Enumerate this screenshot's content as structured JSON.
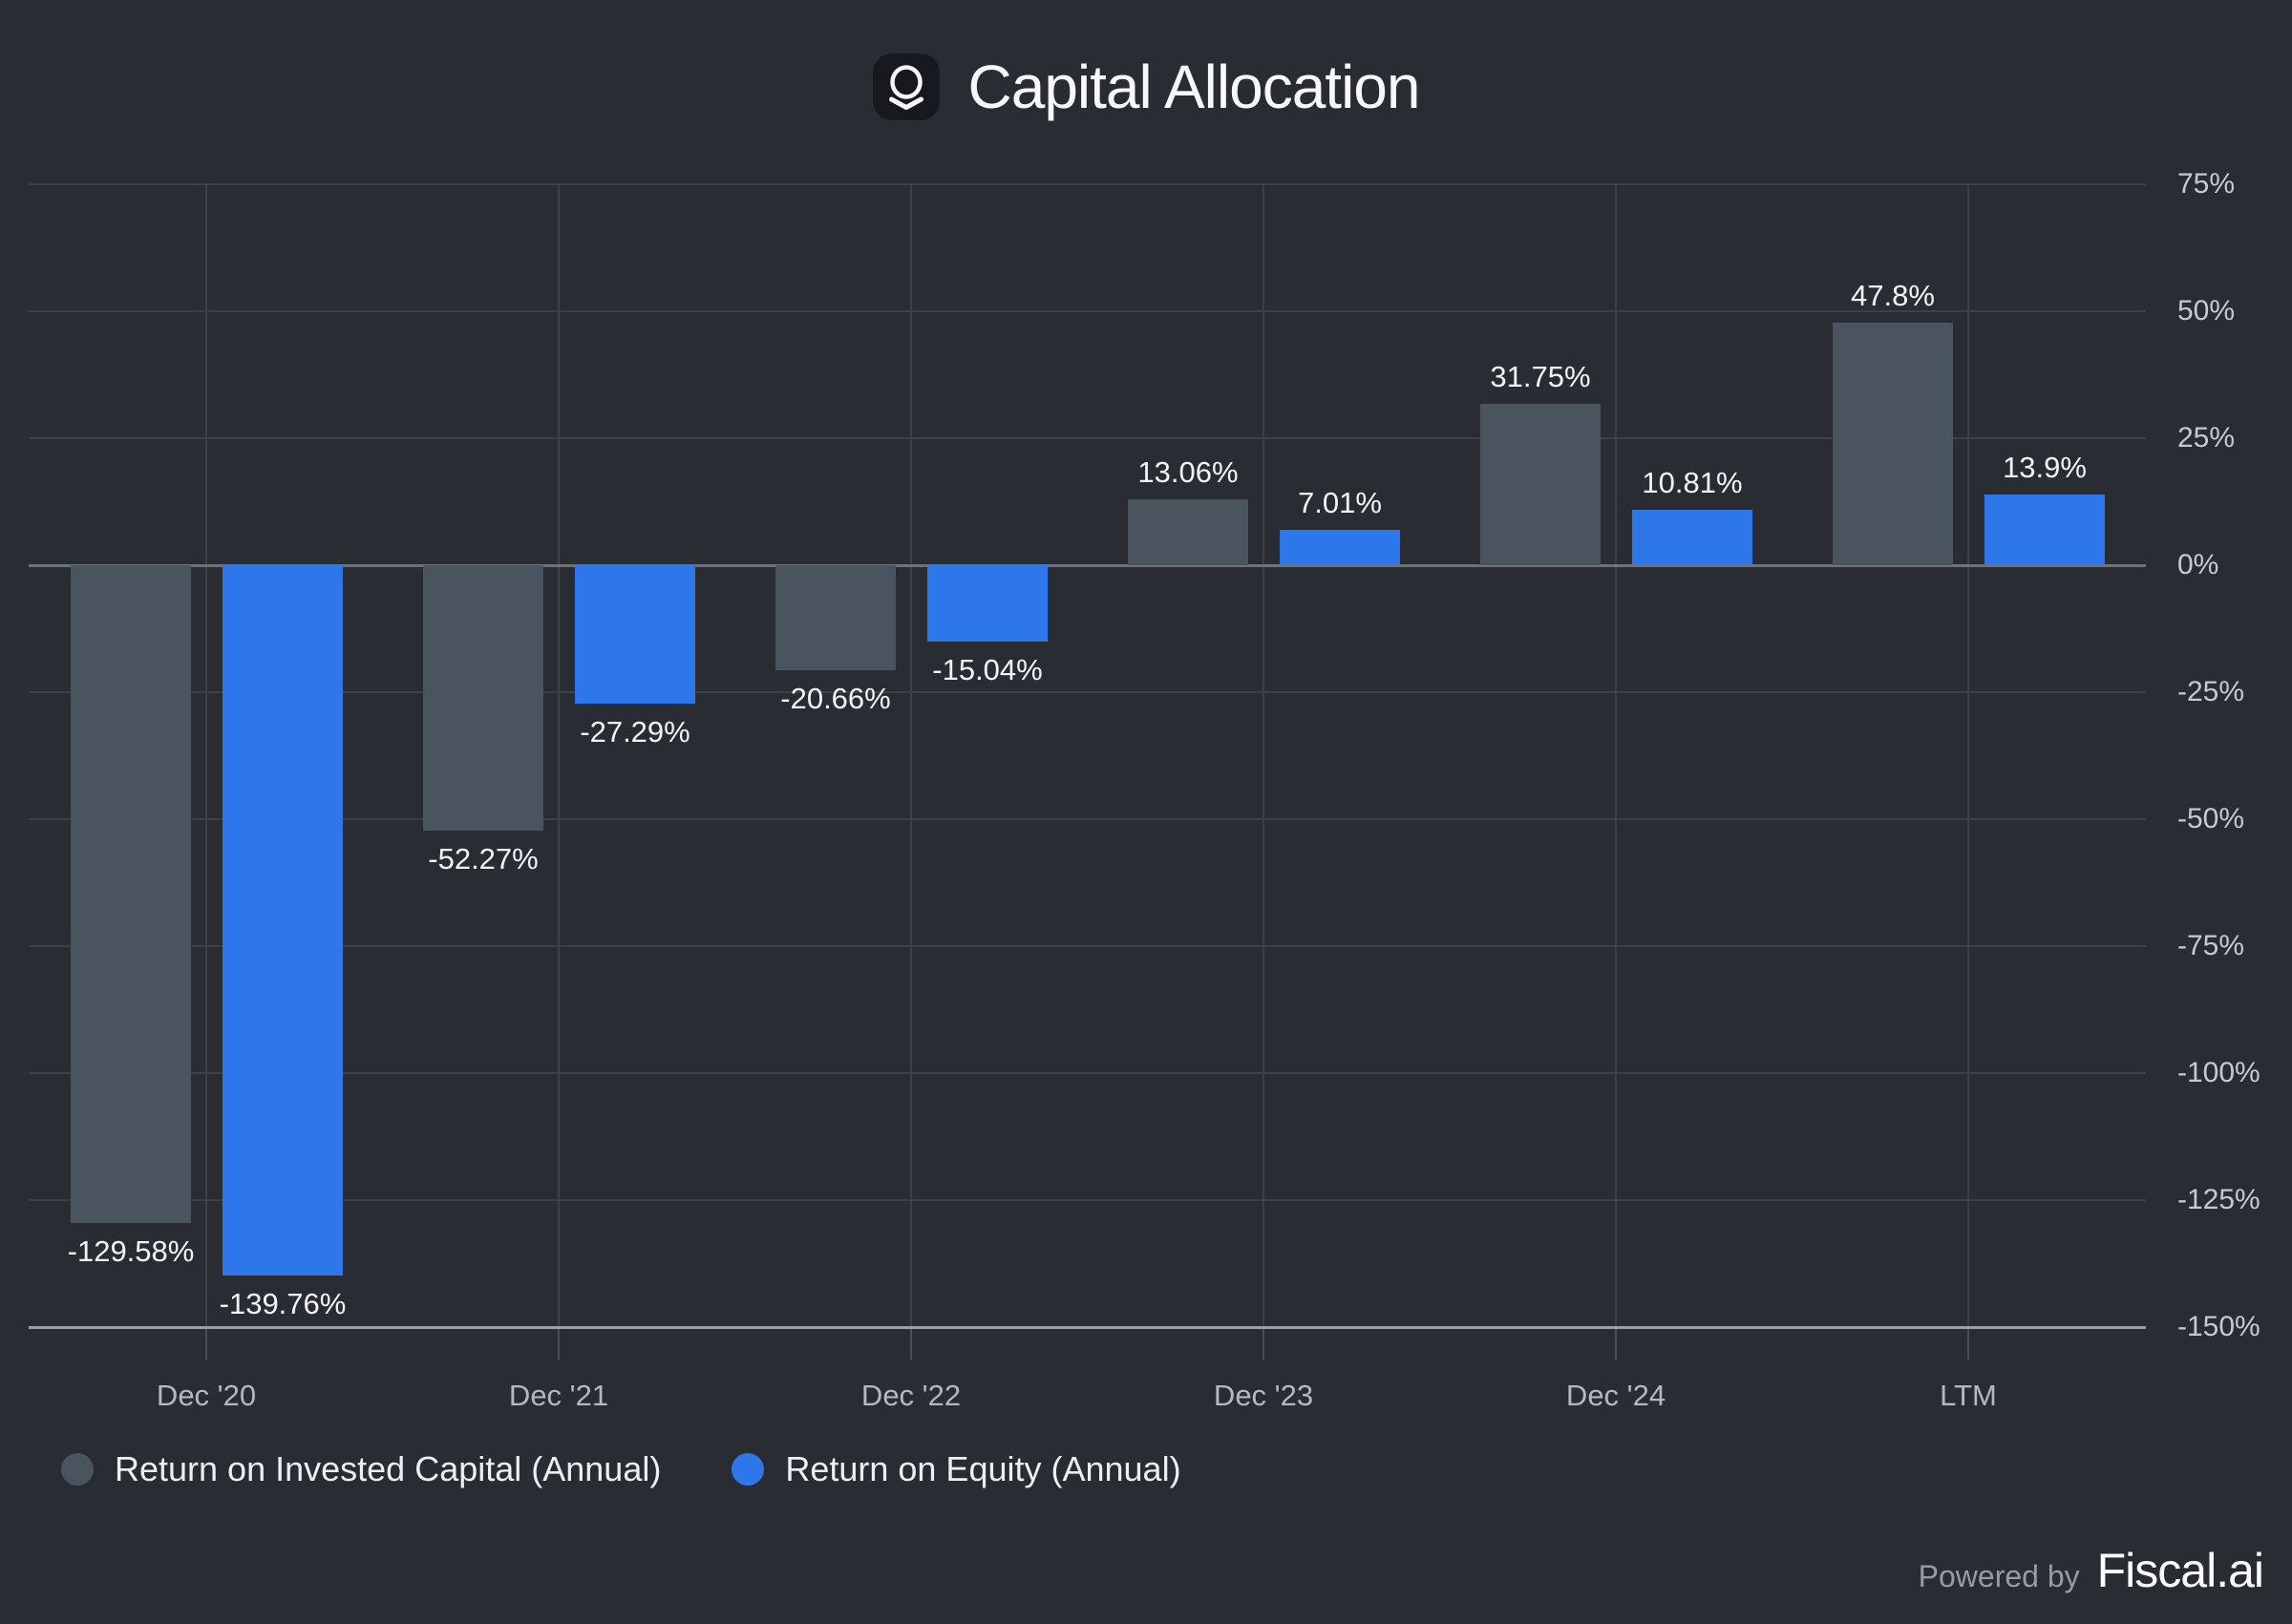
{
  "title": "Capital Allocation",
  "logo": {
    "icon": "company-logo"
  },
  "legend": {
    "items": [
      {
        "label": "Return on Invested Capital (Annual)",
        "color": "#4a545f"
      },
      {
        "label": "Return on Equity (Annual)",
        "color": "#2d77ea"
      }
    ]
  },
  "footer": {
    "powered_by": "Powered by",
    "brand": "Fiscal.ai"
  },
  "colors": {
    "background": "#2a2c33",
    "bar_roic": "#4a545f",
    "bar_roe": "#2d77ea",
    "gridline": "#3d4048",
    "zero_line": "#6e727c",
    "axis_line": "#9aa0a9",
    "x_tick": "#4a4d55",
    "y_tick_label": "#c7c9cf",
    "x_tick_label": "#b6b8bf",
    "value_label": "#f2f4f6",
    "legend_text": "#edeff2",
    "title": "#f7f8f9",
    "powered_by": "#989ba2",
    "brand": "#fcfdfe",
    "logo_bg": "#17191f",
    "logo_stroke": "#f5f6f8"
  },
  "chart_data": {
    "type": "bar",
    "title": "Capital Allocation",
    "categories": [
      "Dec '20",
      "Dec '21",
      "Dec '22",
      "Dec '23",
      "Dec '24",
      "LTM"
    ],
    "series": [
      {
        "name": "Return on Invested Capital (Annual)",
        "key": "roic",
        "color": "#4a545f",
        "values": [
          -129.58,
          -52.27,
          -20.66,
          13.06,
          31.75,
          47.8
        ],
        "labels": [
          "-129.58%",
          "-52.27%",
          "-20.66%",
          "13.06%",
          "31.75%",
          "47.8%"
        ]
      },
      {
        "name": "Return on Equity (Annual)",
        "key": "roe",
        "color": "#2d77ea",
        "values": [
          -139.76,
          -27.29,
          -15.04,
          7.01,
          10.81,
          13.9
        ],
        "labels": [
          "-139.76%",
          "-27.29%",
          "-15.04%",
          "7.01%",
          "10.81%",
          "13.9%"
        ]
      }
    ],
    "xlabel": "",
    "ylabel": "",
    "ylim": [
      -150,
      75
    ],
    "y_ticks": [
      75,
      50,
      25,
      0,
      -25,
      -50,
      -75,
      -100,
      -125,
      -150
    ],
    "y_tick_labels": [
      "75%",
      "50%",
      "25%",
      "0%",
      "-25%",
      "-50%",
      "-75%",
      "-100%",
      "-125%",
      "-150%"
    ],
    "grid": true,
    "legend_position": "bottom-left",
    "value_labels": true
  }
}
